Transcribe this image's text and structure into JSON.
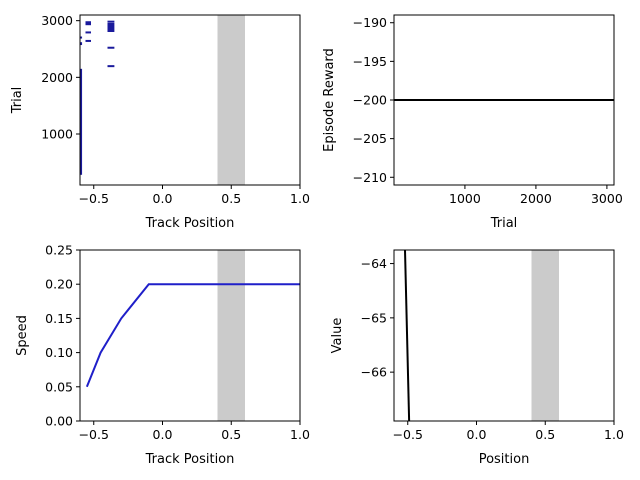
{
  "figure": {
    "background": "#ffffff"
  },
  "chart_data": [
    {
      "id": "trial-raster",
      "type": "scatter",
      "title": "",
      "xlabel": "Track Position",
      "ylabel": "Trial",
      "xlim": [
        -0.6,
        1.0
      ],
      "ylim": [
        100,
        3100
      ],
      "xticks": [
        -0.5,
        0.0,
        0.5,
        1.0
      ],
      "xtick_labels": [
        "−0.5",
        "0.0",
        "0.5",
        "1.0"
      ],
      "yticks": [
        1000,
        2000,
        3000
      ],
      "ytick_labels": [
        "1000",
        "2000",
        "3000"
      ],
      "shaded_region": {
        "x": [
          0.4,
          0.6
        ],
        "color": "#cbcbcb"
      },
      "series": [
        {
          "color": "#1a1a9c",
          "segments": [
            {
              "x": [
                -0.6,
                -0.585
              ],
              "y": [
                280,
                2150
              ]
            },
            {
              "x": [
                -0.6,
                -0.585
              ],
              "y": [
                2570,
                2620
              ]
            },
            {
              "x": [
                -0.6,
                -0.585
              ],
              "y": [
                2690,
                2720
              ]
            },
            {
              "x": [
                -0.56,
                -0.52
              ],
              "y": [
                2920,
                2990
              ]
            },
            {
              "x": [
                -0.56,
                -0.52
              ],
              "y": [
                2790,
                2810
              ]
            },
            {
              "x": [
                -0.56,
                -0.52
              ],
              "y": [
                2640,
                2660
              ]
            },
            {
              "x": [
                -0.4,
                -0.35
              ],
              "y": [
                2800,
                2960
              ]
            },
            {
              "x": [
                -0.4,
                -0.35
              ],
              "y": [
                2980,
                3000
              ]
            },
            {
              "x": [
                -0.4,
                -0.35
              ],
              "y": [
                2510,
                2540
              ]
            },
            {
              "x": [
                -0.4,
                -0.35
              ],
              "y": [
                2200,
                2215
              ]
            }
          ]
        }
      ]
    },
    {
      "id": "episode-reward",
      "type": "line",
      "title": "",
      "xlabel": "Trial",
      "ylabel": "Episode Reward",
      "xlim": [
        1,
        3100
      ],
      "ylim": [
        -211,
        -189
      ],
      "xticks": [
        1000,
        2000,
        3000
      ],
      "xtick_labels": [
        "1000",
        "2000",
        "3000"
      ],
      "yticks": [
        -190,
        -195,
        -200,
        -205,
        -210
      ],
      "ytick_labels": [
        "−190",
        "−195",
        "−200",
        "−205",
        "−210"
      ],
      "series": [
        {
          "color": "#000000",
          "x": [
            1,
            3100
          ],
          "y": [
            -200,
            -200
          ]
        }
      ]
    },
    {
      "id": "speed",
      "type": "line",
      "title": "",
      "xlabel": "Track Position",
      "ylabel": "Speed",
      "xlim": [
        -0.6,
        1.0
      ],
      "ylim": [
        0.0,
        0.25
      ],
      "xticks": [
        -0.5,
        0.0,
        0.5,
        1.0
      ],
      "xtick_labels": [
        "−0.5",
        "0.0",
        "0.5",
        "1.0"
      ],
      "yticks": [
        0.0,
        0.05,
        0.1,
        0.15,
        0.2,
        0.25
      ],
      "ytick_labels": [
        "0.00",
        "0.05",
        "0.10",
        "0.15",
        "0.20",
        "0.25"
      ],
      "shaded_region": {
        "x": [
          0.4,
          0.6
        ],
        "color": "#cbcbcb"
      },
      "series": [
        {
          "color": "#1f1fc9",
          "x": [
            -0.55,
            -0.45,
            -0.3,
            -0.1,
            1.0
          ],
          "y": [
            0.05,
            0.1,
            0.15,
            0.2,
            0.2
          ]
        }
      ]
    },
    {
      "id": "value",
      "type": "line",
      "title": "",
      "xlabel": "Position",
      "ylabel": "Value",
      "xlim": [
        -0.6,
        1.0
      ],
      "ylim": [
        -66.9,
        -63.75
      ],
      "xticks": [
        -0.5,
        0.0,
        0.5,
        1.0
      ],
      "xtick_labels": [
        "−0.5",
        "0.0",
        "0.5",
        "1.0"
      ],
      "yticks": [
        -64,
        -65,
        -66
      ],
      "ytick_labels": [
        "−64",
        "−65",
        "−66"
      ],
      "shaded_region": {
        "x": [
          0.4,
          0.6
        ],
        "color": "#cbcbcb"
      },
      "series": [
        {
          "color": "#000000",
          "x": [
            -0.52,
            -0.49
          ],
          "y": [
            -63.75,
            -66.9
          ]
        }
      ]
    }
  ]
}
